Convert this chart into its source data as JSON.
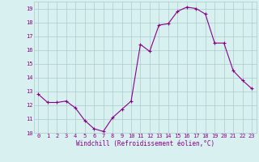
{
  "x": [
    0,
    1,
    2,
    3,
    4,
    5,
    6,
    7,
    8,
    9,
    10,
    11,
    12,
    13,
    14,
    15,
    16,
    17,
    18,
    19,
    20,
    21,
    22,
    23
  ],
  "y": [
    12.8,
    12.2,
    12.2,
    12.3,
    11.8,
    10.9,
    10.3,
    10.1,
    11.1,
    11.7,
    12.3,
    16.4,
    15.9,
    17.8,
    17.9,
    18.8,
    19.1,
    19.0,
    18.6,
    16.5,
    16.5,
    14.5,
    13.8,
    13.2
  ],
  "line_color": "#880088",
  "marker": "+",
  "marker_size": 3,
  "bg_color": "#d8f0f0",
  "grid_color": "#aacccc",
  "xlabel": "Windchill (Refroidissement éolien,°C)",
  "xlabel_color": "#880088",
  "tick_color": "#880088",
  "ylim": [
    10,
    19.5
  ],
  "xlim": [
    -0.5,
    23.5
  ],
  "yticks": [
    10,
    11,
    12,
    13,
    14,
    15,
    16,
    17,
    18,
    19
  ],
  "xticks": [
    0,
    1,
    2,
    3,
    4,
    5,
    6,
    7,
    8,
    9,
    10,
    11,
    12,
    13,
    14,
    15,
    16,
    17,
    18,
    19,
    20,
    21,
    22,
    23
  ],
  "tick_fontsize": 5,
  "xlabel_fontsize": 5.5,
  "linewidth": 0.8,
  "markeredgewidth": 0.8
}
